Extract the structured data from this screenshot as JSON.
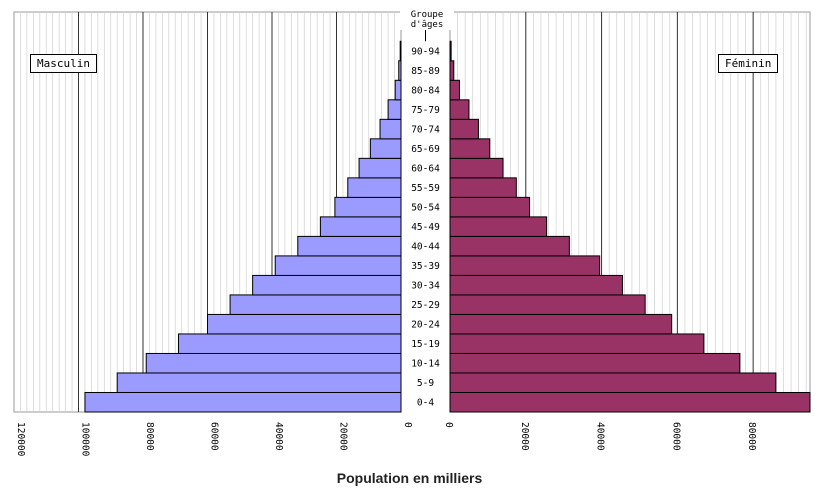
{
  "chart_data": {
    "type": "bar",
    "subtype": "population-pyramid",
    "title": "",
    "xlabel": "Population en milliers",
    "age_axis_title_line1": "Groupe",
    "age_axis_title_line2": "d'âges",
    "categories": [
      "0-4",
      "5-9",
      "10-14",
      "15-19",
      "20-24",
      "25-29",
      "30-34",
      "35-39",
      "40-44",
      "45-49",
      "50-54",
      "55-59",
      "60-64",
      "65-69",
      "70-74",
      "75-79",
      "80-84",
      "85-89",
      "90-94"
    ],
    "series": [
      {
        "name": "Masculin",
        "color": "#9b9bff",
        "values": [
          98000,
          88000,
          79000,
          69000,
          60000,
          53000,
          46000,
          39000,
          32000,
          25000,
          20500,
          16500,
          13000,
          9500,
          6500,
          4000,
          1800,
          700,
          250
        ]
      },
      {
        "name": "Féminin",
        "color": "#993366",
        "values": [
          95000,
          86000,
          76500,
          67000,
          58500,
          51500,
          45500,
          39500,
          31500,
          25500,
          21000,
          17500,
          14000,
          10500,
          7500,
          5000,
          2500,
          1000,
          300
        ]
      }
    ],
    "left_xlim": [
      0,
      120000
    ],
    "right_xlim": [
      0,
      95000
    ],
    "left_ticks": [
      "120000",
      "100000",
      "80000",
      "60000",
      "40000",
      "20000",
      "0"
    ],
    "left_tick_values": [
      120000,
      100000,
      80000,
      60000,
      40000,
      20000,
      0
    ],
    "right_ticks": [
      "0",
      "20000",
      "40000",
      "60000",
      "80000"
    ],
    "right_tick_values": [
      0,
      20000,
      40000,
      60000,
      80000
    ],
    "grid": true
  },
  "legend": {
    "male": "Masculin",
    "female": "Féminin"
  }
}
